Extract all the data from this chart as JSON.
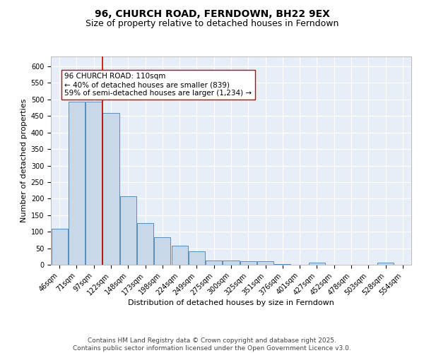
{
  "title1": "96, CHURCH ROAD, FERNDOWN, BH22 9EX",
  "title2": "Size of property relative to detached houses in Ferndown",
  "xlabel": "Distribution of detached houses by size in Ferndown",
  "ylabel": "Number of detached properties",
  "categories": [
    "46sqm",
    "71sqm",
    "97sqm",
    "122sqm",
    "148sqm",
    "173sqm",
    "198sqm",
    "224sqm",
    "249sqm",
    "275sqm",
    "300sqm",
    "325sqm",
    "351sqm",
    "376sqm",
    "401sqm",
    "427sqm",
    "452sqm",
    "478sqm",
    "503sqm",
    "528sqm",
    "554sqm"
  ],
  "values": [
    108,
    493,
    493,
    460,
    208,
    125,
    83,
    58,
    40,
    13,
    13,
    10,
    10,
    3,
    0,
    6,
    0,
    0,
    0,
    6,
    0
  ],
  "bar_color": "#c8d8e8",
  "bar_edge_color": "#5b8db8",
  "vline_x": 2.5,
  "vline_color": "#cc0000",
  "annotation_text": "96 CHURCH ROAD: 110sqm\n← 40% of detached houses are smaller (839)\n59% of semi-detached houses are larger (1,234) →",
  "annotation_box_color": "#ffffff",
  "annotation_box_edge": "#cc0000",
  "ylim": [
    0,
    630
  ],
  "yticks": [
    0,
    50,
    100,
    150,
    200,
    250,
    300,
    350,
    400,
    450,
    500,
    550,
    600
  ],
  "bg_color": "#e8eef7",
  "footer_text": "Contains HM Land Registry data © Crown copyright and database right 2025.\nContains public sector information licensed under the Open Government Licence v3.0.",
  "title_fontsize": 10,
  "subtitle_fontsize": 9,
  "axis_label_fontsize": 8,
  "tick_fontsize": 7,
  "annotation_fontsize": 7.5,
  "footer_fontsize": 6.5
}
